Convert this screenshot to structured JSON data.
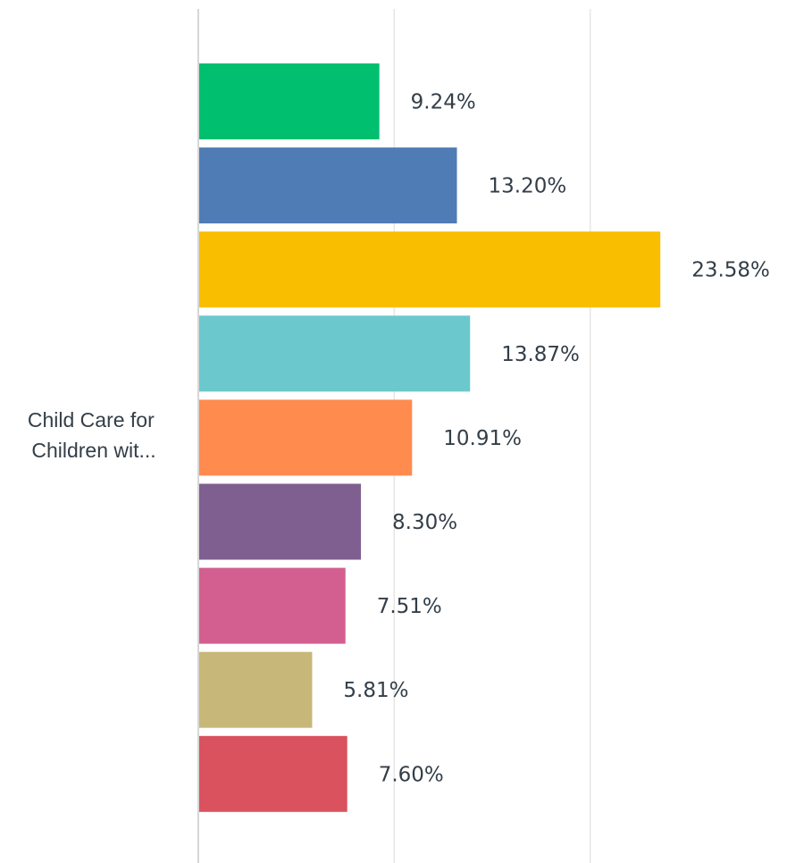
{
  "chart_data": {
    "type": "bar",
    "orientation": "horizontal",
    "categories": [
      "Child Care for Children wit..."
    ],
    "category_label_lines": [
      "Child Care for",
      "Children wit..."
    ],
    "series": [
      {
        "values": [
          9.24
        ],
        "label": "9.24%",
        "color": "#00bf6f"
      },
      {
        "values": [
          13.2
        ],
        "label": "13.20%",
        "color": "#507cb6"
      },
      {
        "values": [
          23.58
        ],
        "label": "23.58%",
        "color": "#f9be00"
      },
      {
        "values": [
          13.87
        ],
        "label": "13.87%",
        "color": "#6bc8cd"
      },
      {
        "values": [
          10.91
        ],
        "label": "10.91%",
        "color": "#ff8b4f"
      },
      {
        "values": [
          8.3
        ],
        "label": "8.30%",
        "color": "#7f5f8f"
      },
      {
        "values": [
          7.51
        ],
        "label": "7.51%",
        "color": "#d25f90"
      },
      {
        "values": [
          5.81
        ],
        "label": "5.81%",
        "color": "#c7b879"
      },
      {
        "values": [
          7.6
        ],
        "label": "7.60%",
        "color": "#d9525e"
      }
    ],
    "xlim": [
      0,
      30
    ],
    "gridlines": true,
    "legend": "none",
    "title": "",
    "xlabel": "",
    "ylabel": ""
  }
}
